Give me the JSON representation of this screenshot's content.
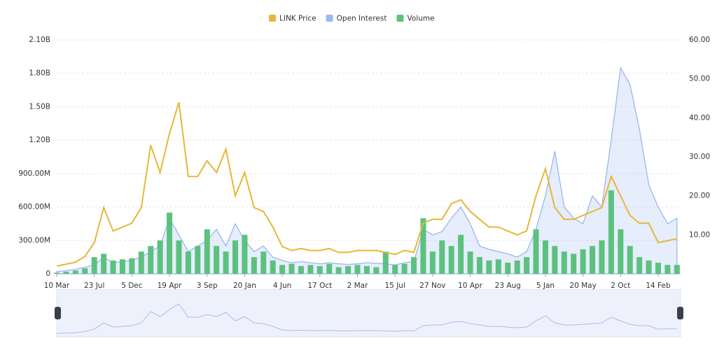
{
  "chart_data": {
    "type": "combo",
    "categories": [
      "10 Mar",
      null,
      null,
      null,
      "23 Jul",
      null,
      null,
      null,
      "5 Dec",
      null,
      null,
      null,
      "19 Apr",
      null,
      null,
      null,
      "3 Sep",
      null,
      null,
      null,
      "20 Jan",
      null,
      null,
      null,
      "4 Jun",
      null,
      null,
      null,
      "17 Oct",
      null,
      null,
      null,
      "2 Mar",
      null,
      null,
      null,
      "15 Jul",
      null,
      null,
      null,
      "27 Nov",
      null,
      null,
      null,
      "10 Apr",
      null,
      null,
      null,
      "23 Aug",
      null,
      null,
      null,
      "5 Jan",
      null,
      null,
      null,
      "20 May",
      null,
      null,
      null,
      "2 Oct",
      null,
      null,
      null,
      "14 Feb",
      null,
      null
    ],
    "series": [
      {
        "name": "LINK Price",
        "color": "#e6b73a",
        "mark": "line",
        "axis": "y2",
        "values": [
          2,
          2.5,
          3,
          4.5,
          8,
          17,
          11,
          12,
          13,
          17,
          33,
          26,
          36,
          44,
          25,
          25,
          29,
          26,
          32,
          20,
          26,
          17,
          16,
          12,
          7,
          6,
          6.5,
          6,
          6,
          6.5,
          5.5,
          5.5,
          6,
          6,
          6,
          5.5,
          5,
          6,
          5.5,
          13,
          14,
          14,
          18,
          19,
          16,
          14,
          12,
          12,
          11,
          10,
          11,
          20,
          27,
          17,
          14,
          14,
          15,
          16,
          17,
          25,
          20,
          15,
          13,
          13,
          8,
          8.5,
          9
        ]
      },
      {
        "name": "Open Interest",
        "color": "#9ab8ef",
        "mark": "area",
        "values": [
          20000000,
          30000000,
          40000000,
          60000000,
          80000000,
          150000000,
          100000000,
          110000000,
          120000000,
          150000000,
          200000000,
          250000000,
          500000000,
          350000000,
          200000000,
          250000000,
          300000000,
          400000000,
          250000000,
          450000000,
          300000000,
          200000000,
          250000000,
          150000000,
          120000000,
          100000000,
          110000000,
          100000000,
          90000000,
          100000000,
          90000000,
          85000000,
          90000000,
          100000000,
          95000000,
          90000000,
          80000000,
          100000000,
          110000000,
          400000000,
          350000000,
          380000000,
          500000000,
          600000000,
          450000000,
          250000000,
          220000000,
          200000000,
          180000000,
          150000000,
          200000000,
          400000000,
          700000000,
          1100000000,
          600000000,
          500000000,
          450000000,
          700000000,
          600000000,
          1200000000,
          1850000000,
          1700000000,
          1300000000,
          800000000,
          600000000,
          450000000,
          500000000
        ]
      },
      {
        "name": "Volume",
        "color": "#5cc17f",
        "mark": "bar",
        "values": [
          10000000,
          20000000,
          30000000,
          50000000,
          150000000,
          180000000,
          120000000,
          130000000,
          140000000,
          200000000,
          250000000,
          300000000,
          550000000,
          300000000,
          200000000,
          250000000,
          400000000,
          250000000,
          200000000,
          300000000,
          350000000,
          150000000,
          200000000,
          120000000,
          80000000,
          90000000,
          70000000,
          80000000,
          70000000,
          90000000,
          60000000,
          70000000,
          80000000,
          70000000,
          60000000,
          200000000,
          80000000,
          90000000,
          150000000,
          500000000,
          200000000,
          300000000,
          250000000,
          350000000,
          200000000,
          150000000,
          120000000,
          130000000,
          100000000,
          120000000,
          150000000,
          400000000,
          300000000,
          250000000,
          200000000,
          180000000,
          220000000,
          250000000,
          300000000,
          750000000,
          400000000,
          250000000,
          150000000,
          120000000,
          100000000,
          80000000,
          80000000
        ]
      }
    ],
    "ylim": [
      0,
      2100000000
    ],
    "yticks": [
      0,
      {
        "value": 300000000,
        "label": "300.00M"
      },
      {
        "value": 600000000,
        "label": "600.00M"
      },
      {
        "value": 900000000,
        "label": "900.00M"
      },
      {
        "value": 1200000000,
        "label": "1.20B"
      },
      {
        "value": 1500000000,
        "label": "1.50B"
      },
      {
        "value": 1800000000,
        "label": "1.80B"
      },
      {
        "value": 2100000000,
        "label": "2.10B"
      }
    ],
    "y2lim": [
      0,
      60
    ],
    "y2ticks": [
      {
        "value": 10,
        "label": "10.00"
      },
      {
        "value": 20,
        "label": "20.00"
      },
      {
        "value": 30,
        "label": "30.00"
      },
      {
        "value": 40,
        "label": "40.00"
      },
      {
        "value": 50,
        "label": "50.00"
      },
      {
        "value": 60,
        "label": "60.00"
      }
    ],
    "grid": true,
    "legend": "top"
  }
}
